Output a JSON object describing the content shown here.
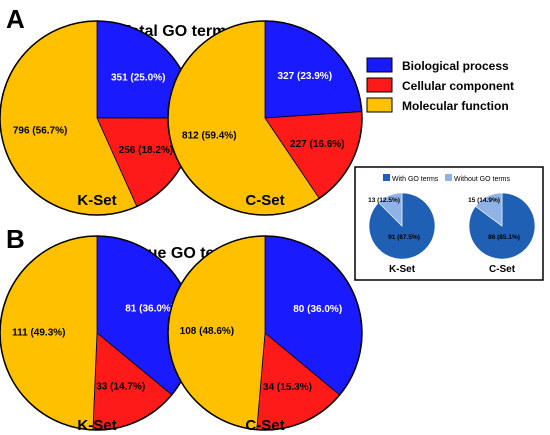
{
  "panels": {
    "a": {
      "letter": "A",
      "title": "Total GO terms"
    },
    "b": {
      "letter": "B",
      "title": "Unique GO terms"
    }
  },
  "legend": {
    "items": [
      {
        "label": "Biological process",
        "color": "#1a1aff"
      },
      {
        "label": "Cellular component",
        "color": "#ff1a1a"
      },
      {
        "label": "Molecular function",
        "color": "#ffc000"
      }
    ]
  },
  "inset": {
    "legend": [
      {
        "label": "With GO terms",
        "color": "#1f5fb4"
      },
      {
        "label": "Without GO terms",
        "color": "#8fb3e6"
      }
    ]
  },
  "chart_data": [
    {
      "type": "pie",
      "panel": "A",
      "title": "Total GO terms",
      "subtitle": "K-Set",
      "series": [
        {
          "name": "Biological process",
          "value": 351,
          "percent": 25.0,
          "label": "351 (25.0%)",
          "color": "#1a1aff"
        },
        {
          "name": "Cellular component",
          "value": 256,
          "percent": 18.2,
          "label": "256 (18.2%)",
          "color": "#ff1a1a"
        },
        {
          "name": "Molecular function",
          "value": 796,
          "percent": 56.7,
          "label": "796 (56.7%)",
          "color": "#ffc000"
        }
      ]
    },
    {
      "type": "pie",
      "panel": "A",
      "title": "Total GO terms",
      "subtitle": "C-Set",
      "series": [
        {
          "name": "Biological process",
          "value": 327,
          "percent": 23.9,
          "label": "327 (23.9%)",
          "color": "#1a1aff"
        },
        {
          "name": "Cellular component",
          "value": 227,
          "percent": 16.6,
          "label": "227 (16.6%)",
          "color": "#ff1a1a"
        },
        {
          "name": "Molecular function",
          "value": 812,
          "percent": 59.4,
          "label": "812 (59.4%)",
          "color": "#ffc000"
        }
      ]
    },
    {
      "type": "pie",
      "panel": "B",
      "title": "Unique GO terms",
      "subtitle": "K-Set",
      "series": [
        {
          "name": "Biological process",
          "value": 81,
          "percent": 36.0,
          "label": "81 (36.0%)",
          "color": "#1a1aff"
        },
        {
          "name": "Cellular component",
          "value": 33,
          "percent": 14.7,
          "label": "33 (14.7%)",
          "color": "#ff1a1a"
        },
        {
          "name": "Molecular function",
          "value": 111,
          "percent": 49.3,
          "label": "111 (49.3%)",
          "color": "#ffc000"
        }
      ]
    },
    {
      "type": "pie",
      "panel": "B",
      "title": "Unique GO terms",
      "subtitle": "C-Set",
      "series": [
        {
          "name": "Biological process",
          "value": 80,
          "percent": 36.0,
          "label": "80 (36.0%)",
          "color": "#1a1aff"
        },
        {
          "name": "Cellular component",
          "value": 34,
          "percent": 15.3,
          "label": "34 (15.3%)",
          "color": "#ff1a1a"
        },
        {
          "name": "Molecular function",
          "value": 108,
          "percent": 48.6,
          "label": "108 (48.6%)",
          "color": "#ffc000"
        }
      ]
    },
    {
      "type": "pie",
      "panel": "inset",
      "subtitle": "K-Set",
      "series": [
        {
          "name": "With GO terms",
          "value": 91,
          "percent": 87.5,
          "label": "91 (87.5%)",
          "color": "#1f5fb4"
        },
        {
          "name": "Without GO terms",
          "value": 13,
          "percent": 12.5,
          "label": "13 (12.5%)",
          "color": "#8fb3e6"
        }
      ]
    },
    {
      "type": "pie",
      "panel": "inset",
      "subtitle": "C-Set",
      "series": [
        {
          "name": "With GO terms",
          "value": 86,
          "percent": 85.1,
          "label": "86 (85.1%)",
          "color": "#1f5fb4"
        },
        {
          "name": "Without GO terms",
          "value": 15,
          "percent": 14.9,
          "label": "15 (14.9%)",
          "color": "#8fb3e6"
        }
      ]
    }
  ]
}
